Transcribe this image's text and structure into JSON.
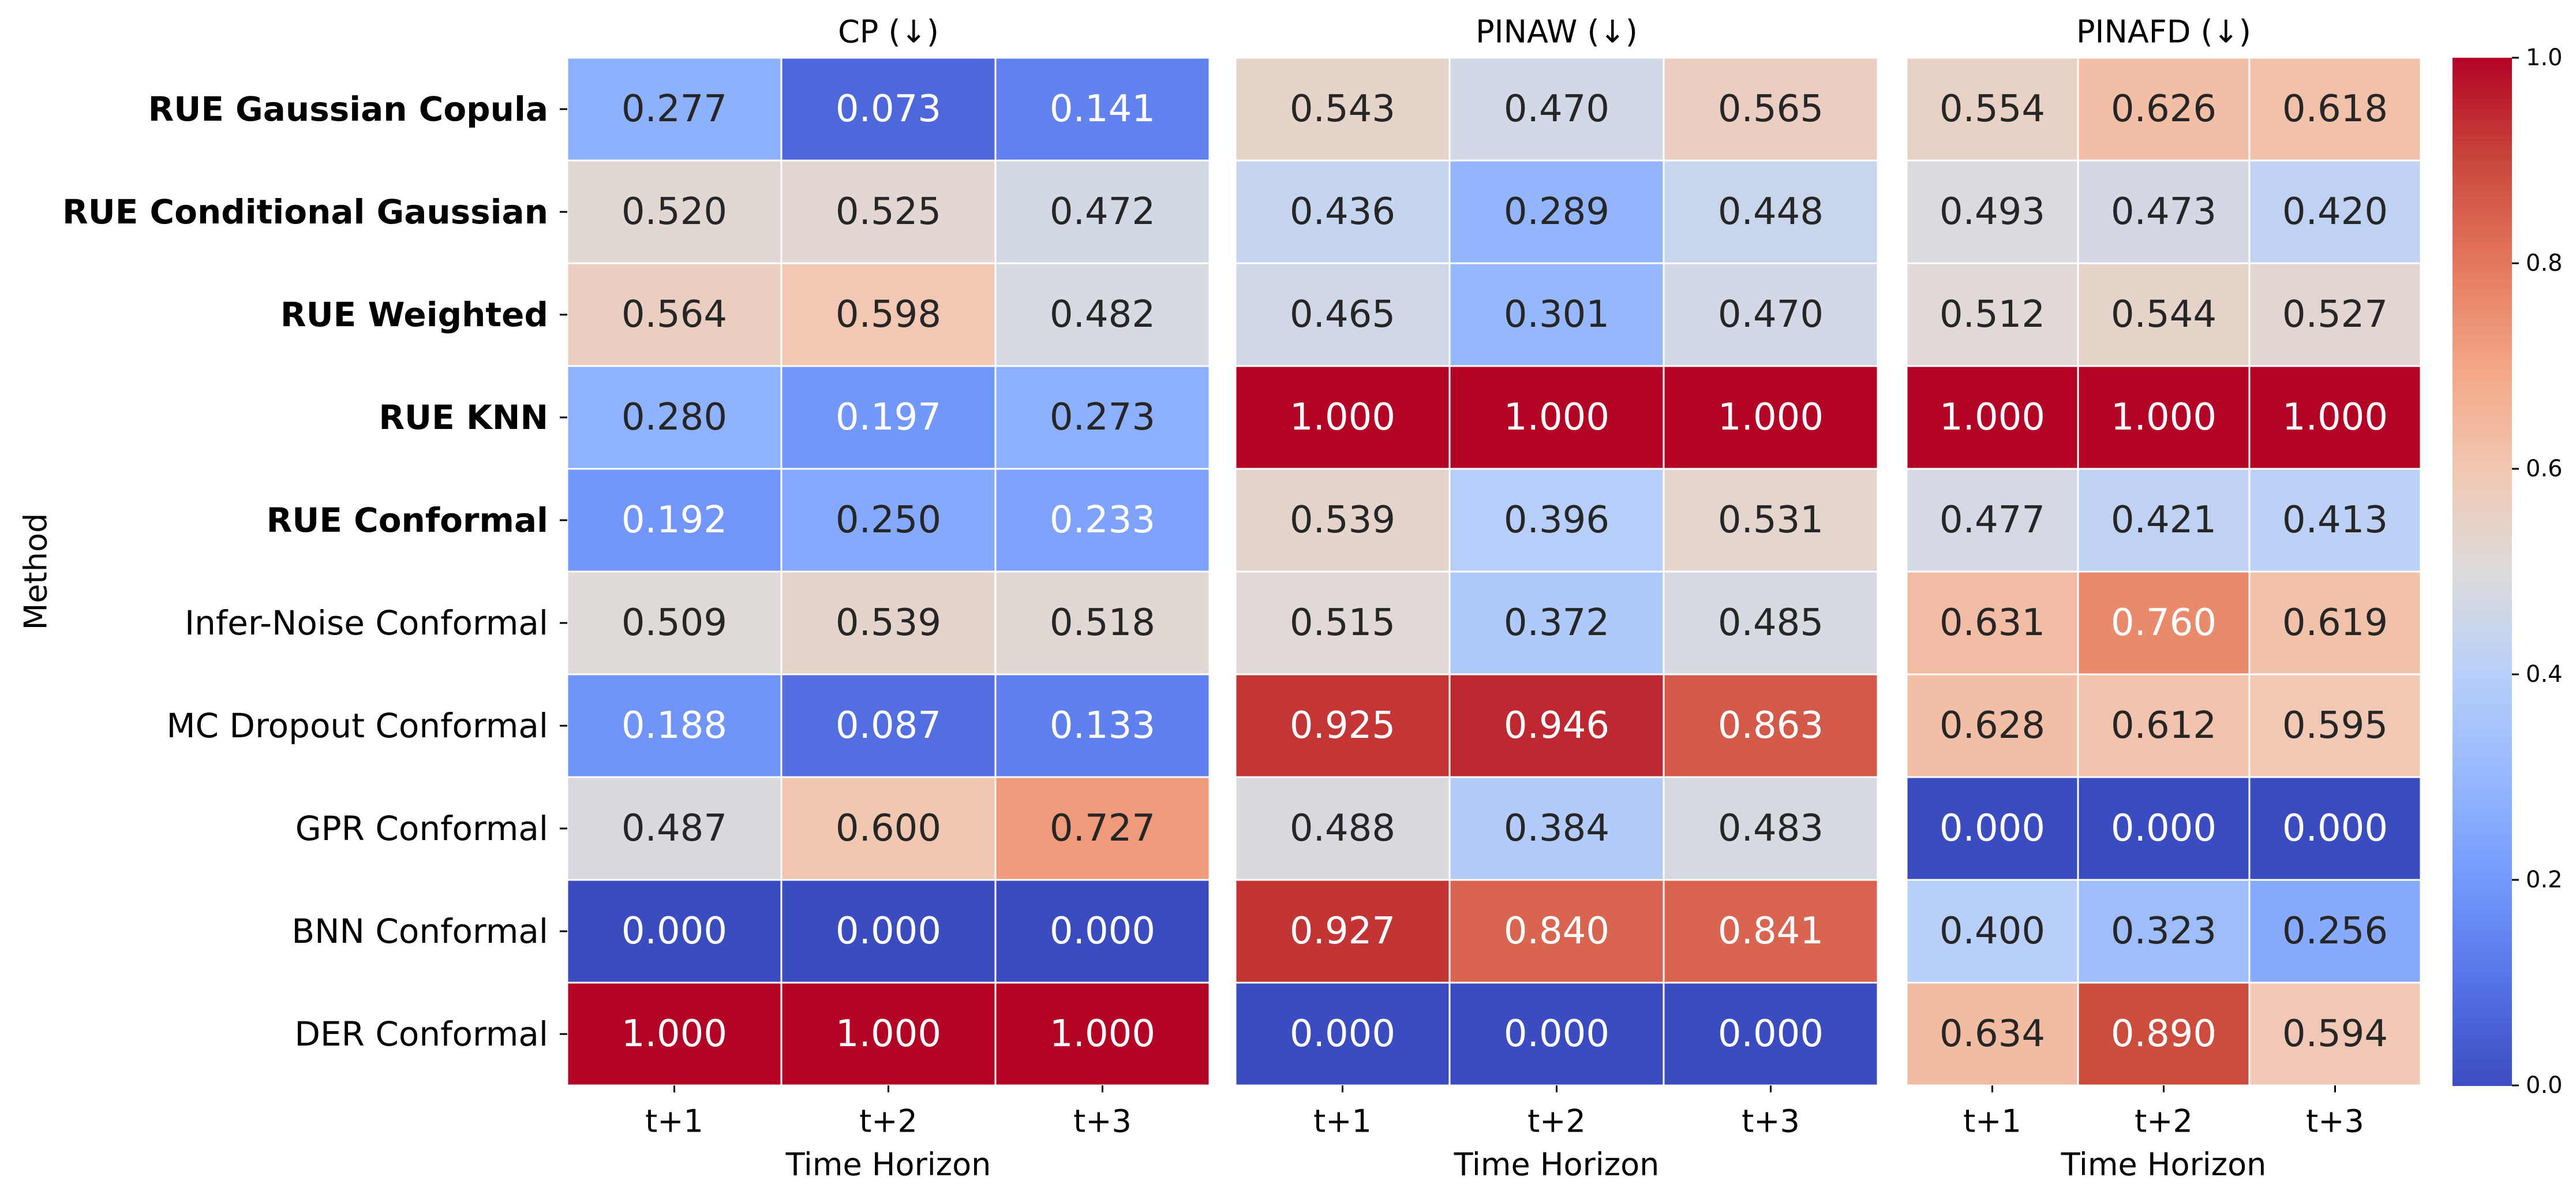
{
  "chart_data": [
    {
      "type": "heatmap",
      "title": "CP (↓)",
      "xlabel": "Time Horizon",
      "ylabel": "Method",
      "x": [
        "t+1",
        "t+2",
        "t+3"
      ],
      "y": [
        "RUE Gaussian Copula",
        "RUE Conditional Gaussian",
        "RUE Weighted",
        "RUE KNN",
        "RUE Conformal",
        "Infer-Noise Conformal",
        "MC Dropout Conformal",
        "GPR Conformal",
        "BNN Conformal",
        "DER Conformal"
      ],
      "bold_rows": [
        "RUE Gaussian Copula",
        "RUE Conditional Gaussian",
        "RUE Weighted",
        "RUE KNN",
        "RUE Conformal"
      ],
      "values": [
        [
          "0.277",
          "0.073",
          "0.141"
        ],
        [
          "0.520",
          "0.525",
          "0.472"
        ],
        [
          "0.564",
          "0.598",
          "0.482"
        ],
        [
          "0.280",
          "0.197",
          "0.273"
        ],
        [
          "0.192",
          "0.250",
          "0.233"
        ],
        [
          "0.509",
          "0.539",
          "0.518"
        ],
        [
          "0.188",
          "0.087",
          "0.133"
        ],
        [
          "0.487",
          "0.600",
          "0.727"
        ],
        [
          "0.000",
          "0.000",
          "0.000"
        ],
        [
          "1.000",
          "1.000",
          "1.000"
        ]
      ]
    },
    {
      "type": "heatmap",
      "title": "PINAW (↓)",
      "xlabel": "Time Horizon",
      "x": [
        "t+1",
        "t+2",
        "t+3"
      ],
      "values": [
        [
          "0.543",
          "0.470",
          "0.565"
        ],
        [
          "0.436",
          "0.289",
          "0.448"
        ],
        [
          "0.465",
          "0.301",
          "0.470"
        ],
        [
          "1.000",
          "1.000",
          "1.000"
        ],
        [
          "0.539",
          "0.396",
          "0.531"
        ],
        [
          "0.515",
          "0.372",
          "0.485"
        ],
        [
          "0.925",
          "0.946",
          "0.863"
        ],
        [
          "0.488",
          "0.384",
          "0.483"
        ],
        [
          "0.927",
          "0.840",
          "0.841"
        ],
        [
          "0.000",
          "0.000",
          "0.000"
        ]
      ]
    },
    {
      "type": "heatmap",
      "title": "PINAFD (↓)",
      "xlabel": "Time Horizon",
      "x": [
        "t+1",
        "t+2",
        "t+3"
      ],
      "values": [
        [
          "0.554",
          "0.626",
          "0.618"
        ],
        [
          "0.493",
          "0.473",
          "0.420"
        ],
        [
          "0.512",
          "0.544",
          "0.527"
        ],
        [
          "1.000",
          "1.000",
          "1.000"
        ],
        [
          "0.477",
          "0.421",
          "0.413"
        ],
        [
          "0.631",
          "0.760",
          "0.619"
        ],
        [
          "0.628",
          "0.612",
          "0.595"
        ],
        [
          "0.000",
          "0.000",
          "0.000"
        ],
        [
          "0.400",
          "0.323",
          "0.256"
        ],
        [
          "0.634",
          "0.890",
          "0.594"
        ]
      ]
    }
  ],
  "colorbar": {
    "colormap": "coolwarm",
    "range": [
      0,
      1
    ],
    "ticks": [
      "0.0",
      "0.2",
      "0.4",
      "0.6",
      "0.8",
      "1.0"
    ]
  }
}
